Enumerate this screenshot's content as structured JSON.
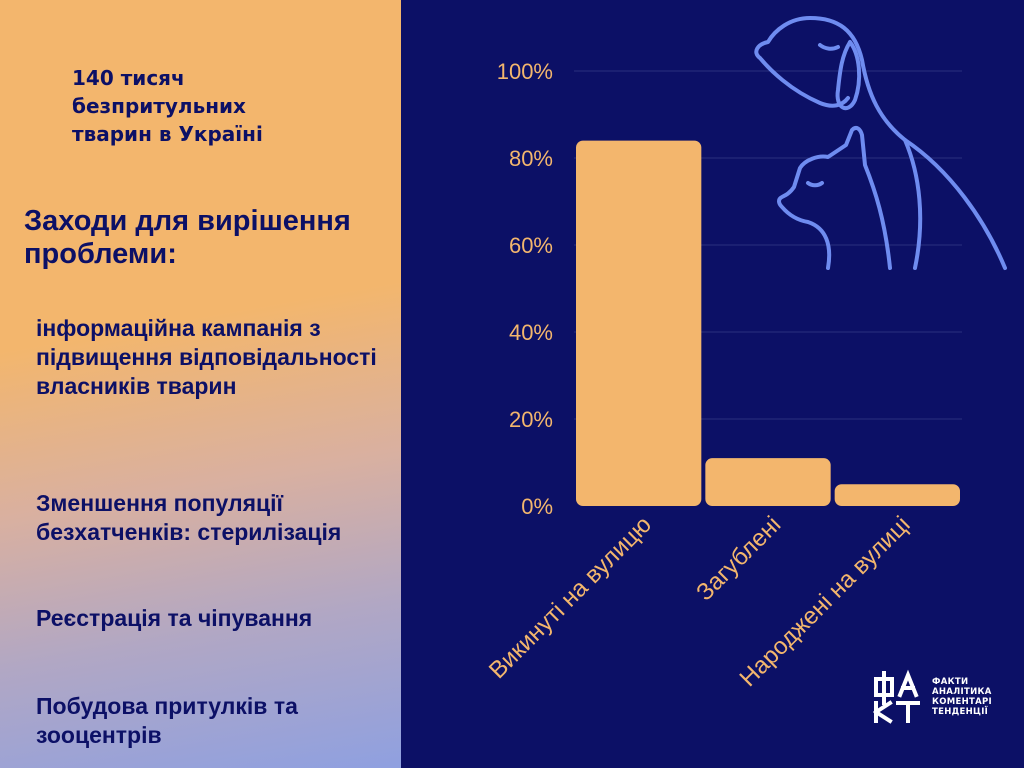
{
  "headline": [
    "140 тисяч",
    "безпритульних",
    "тварин в Україні"
  ],
  "section_title": "Заходи для вирішення проблеми:",
  "measures": [
    "інформаційна кампанія з підвищення відповідальності власників тварин",
    "Зменшення популяції безхатченків: стерилізація",
    "Реєстрація та чіпування",
    "Побудова притулків та зооцентрів"
  ],
  "colors": {
    "accent": "#f3b66d",
    "background": "#0c1066",
    "grid": "#2a2f7e",
    "illustration": "#6f8cf0"
  },
  "illustration": [
    "dog-icon",
    "cat-icon"
  ],
  "chart_data": {
    "type": "bar",
    "categories": [
      "Викинуті на вулицю",
      "Загублені",
      "Народжені на вулиці"
    ],
    "values": [
      84,
      11,
      5
    ],
    "ylim": [
      0,
      100
    ],
    "yticks": [
      0,
      20,
      40,
      60,
      80,
      100
    ],
    "ytick_labels": [
      "0%",
      "20%",
      "40%",
      "60%",
      "80%",
      "100%"
    ],
    "grid": true,
    "bar_color": "#f3b66d"
  },
  "logo": {
    "mark": "ФА КТ",
    "lines": [
      "ФАКТИ",
      "АНАЛІТИКА",
      "КОМЕНТАРІ",
      "ТЕНДЕНЦІЇ"
    ]
  }
}
